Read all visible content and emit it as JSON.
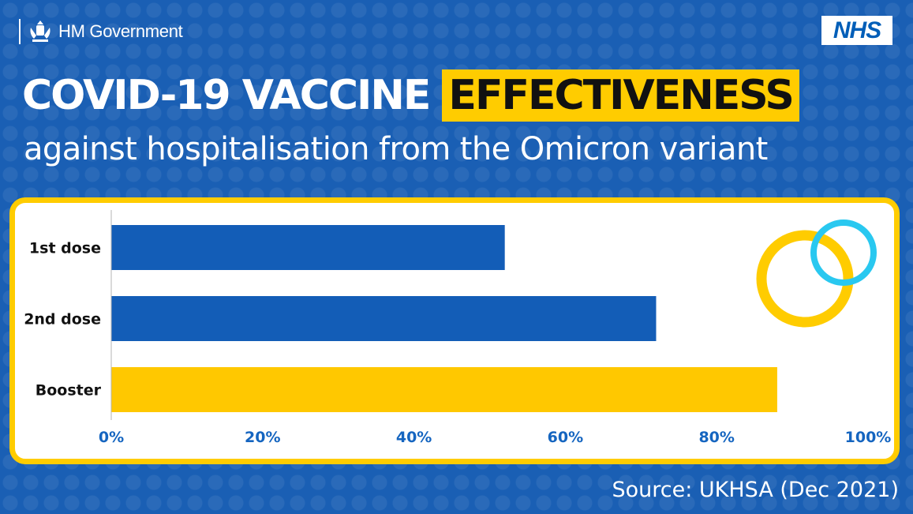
{
  "header": {
    "government_label": "HM Government",
    "nhs_logo_text": "NHS",
    "title_main": "COVID-19 VACCINE",
    "title_highlight": "EFFECTIVENESS",
    "subtitle": "against hospitalisation from the Omicron variant"
  },
  "footer": {
    "source": "Source: UKHSA (Dec 2021)"
  },
  "colors": {
    "background": "#1a5fb4",
    "dose_bar": "#135db7",
    "booster_bar": "#ffc800",
    "accent_yellow": "#ffcc00",
    "accent_cyan": "#29c8f0",
    "tick_text": "#1565c0"
  },
  "decoration": {
    "icon": "overlapping-rings-icon"
  },
  "chart_data": {
    "type": "bar",
    "orientation": "horizontal",
    "categories": [
      "1st dose",
      "2nd dose",
      "Booster"
    ],
    "values": [
      52,
      72,
      88
    ],
    "bar_colors": [
      "#135db7",
      "#135db7",
      "#ffc800"
    ],
    "xlim": [
      0,
      100
    ],
    "x_ticks": [
      "0%",
      "20%",
      "40%",
      "60%",
      "80%",
      "100%"
    ],
    "grid": false
  }
}
